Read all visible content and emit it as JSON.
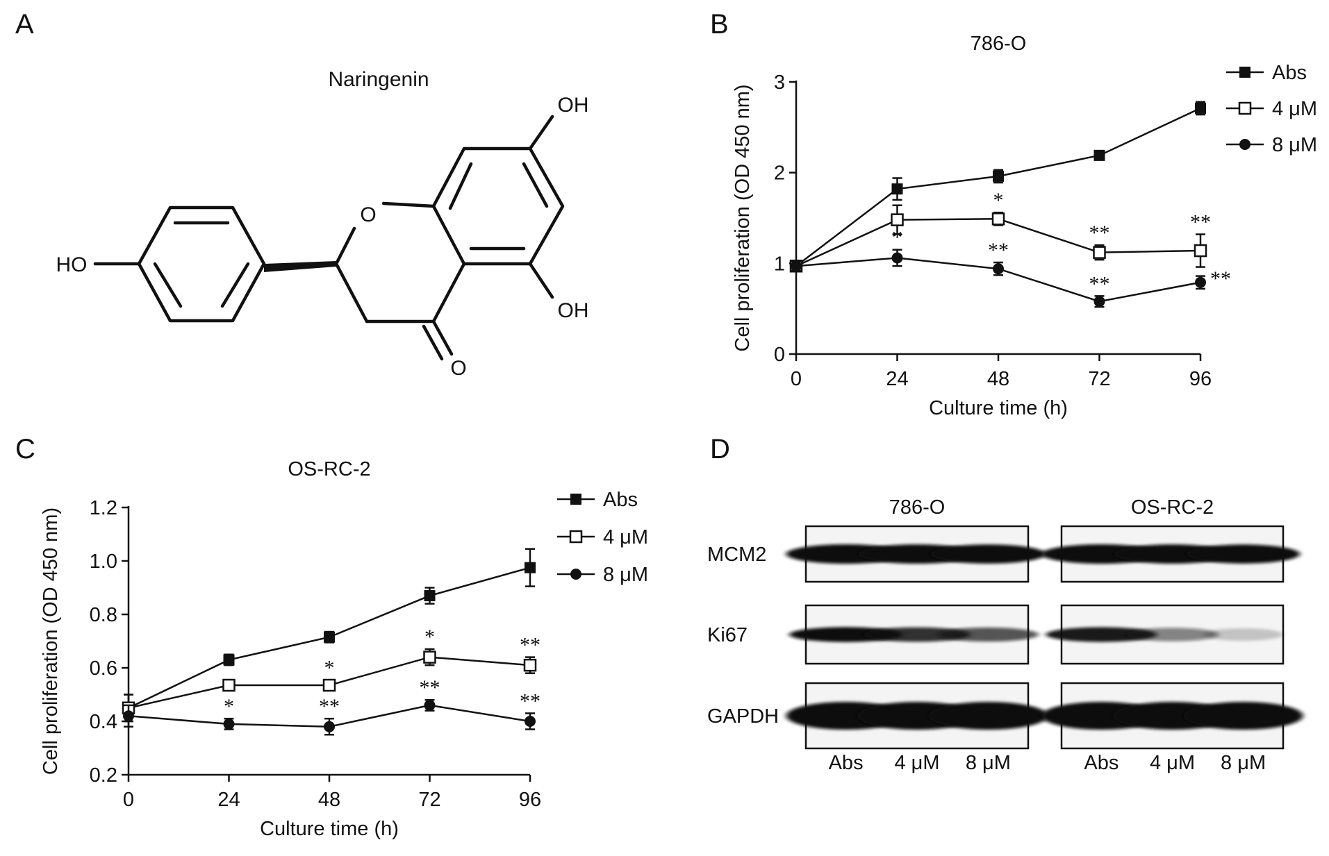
{
  "panels": {
    "a": {
      "letter": "A",
      "compound_name": "Naringenin",
      "atom_labels": {
        "oh_top": "OH",
        "ho_left": "HO",
        "o_ring": "O",
        "oh_bottom": "OH",
        "o_carbonyl": "O"
      }
    },
    "b": {
      "letter": "B"
    },
    "c": {
      "letter": "C"
    },
    "d": {
      "letter": "D",
      "blot_groups": [
        {
          "title": "786-O",
          "lanes": [
            "Abs",
            "4 μM",
            "8 μM"
          ]
        },
        {
          "title": "OS-RC-2",
          "lanes": [
            "Abs",
            "4 μM",
            "8 μM"
          ]
        }
      ],
      "proteins": [
        "MCM2",
        "Ki67",
        "GAPDH"
      ],
      "band_intensity": [
        [
          [
            1.0,
            0.95,
            0.9
          ],
          [
            1.0,
            0.92,
            0.85
          ]
        ],
        [
          [
            0.85,
            0.7,
            0.55
          ],
          [
            0.8,
            0.35,
            0.05
          ]
        ],
        [
          [
            1.0,
            1.0,
            1.0
          ],
          [
            1.0,
            1.0,
            1.0
          ]
        ]
      ]
    }
  },
  "chart_data": [
    {
      "panel": "B",
      "type": "line",
      "title": "786-O",
      "xlabel": "Culture time (h)",
      "ylabel": "Cell proliferation (OD 450 nm)",
      "x": [
        0,
        24,
        48,
        72,
        96
      ],
      "xticks": [
        "0",
        "24",
        "48",
        "72",
        "96"
      ],
      "ylim": [
        0,
        3
      ],
      "yticks": [
        "0",
        "1",
        "2",
        "3"
      ],
      "legend_position": "top-right",
      "series": [
        {
          "name": "Abs",
          "marker": "filled-square",
          "values": [
            0.97,
            1.82,
            1.96,
            2.19,
            2.71
          ],
          "errors": [
            0.05,
            0.12,
            0.07,
            0.05,
            0.07
          ],
          "annotations": [
            "",
            "",
            "",
            "",
            ""
          ]
        },
        {
          "name": "4 μM",
          "marker": "open-square",
          "values": [
            0.97,
            1.48,
            1.49,
            1.12,
            1.14
          ],
          "errors": [
            0.05,
            0.16,
            0.07,
            0.08,
            0.18
          ],
          "annotations": [
            "",
            "",
            "*",
            "**",
            "**"
          ]
        },
        {
          "name": "8 μM",
          "marker": "filled-circle",
          "values": [
            0.97,
            1.06,
            0.94,
            0.58,
            0.79
          ],
          "errors": [
            0.05,
            0.09,
            0.07,
            0.06,
            0.07
          ],
          "annotations": [
            "",
            "*",
            "**",
            "**",
            "**"
          ]
        }
      ]
    },
    {
      "panel": "C",
      "type": "line",
      "title": "OS-RC-2",
      "xlabel": "Culture time (h)",
      "ylabel": "Cell proliferation (OD 450 nm)",
      "x": [
        0,
        24,
        48,
        72,
        96
      ],
      "xticks": [
        "0",
        "24",
        "48",
        "72",
        "96"
      ],
      "ylim": [
        0.2,
        1.2
      ],
      "yticks": [
        "0.2",
        "0.4",
        "0.6",
        "0.8",
        "1.0",
        "1.2"
      ],
      "legend_position": "top-right",
      "series": [
        {
          "name": "Abs",
          "marker": "filled-square",
          "values": [
            0.45,
            0.63,
            0.715,
            0.87,
            0.975
          ],
          "errors": [
            0.05,
            0.02,
            0.02,
            0.03,
            0.07
          ],
          "annotations": [
            "",
            "",
            "",
            "",
            ""
          ]
        },
        {
          "name": "4 μM",
          "marker": "open-square",
          "values": [
            0.45,
            0.535,
            0.535,
            0.64,
            0.61
          ],
          "errors": [
            0.05,
            0.02,
            0.02,
            0.03,
            0.03
          ],
          "annotations": [
            "",
            "",
            "*",
            "*",
            "**"
          ]
        },
        {
          "name": "8 μM",
          "marker": "filled-circle",
          "values": [
            0.42,
            0.39,
            0.38,
            0.46,
            0.4
          ],
          "errors": [
            0.04,
            0.02,
            0.03,
            0.02,
            0.03
          ],
          "annotations": [
            "",
            "*",
            "**",
            "**",
            "**"
          ]
        }
      ]
    }
  ]
}
